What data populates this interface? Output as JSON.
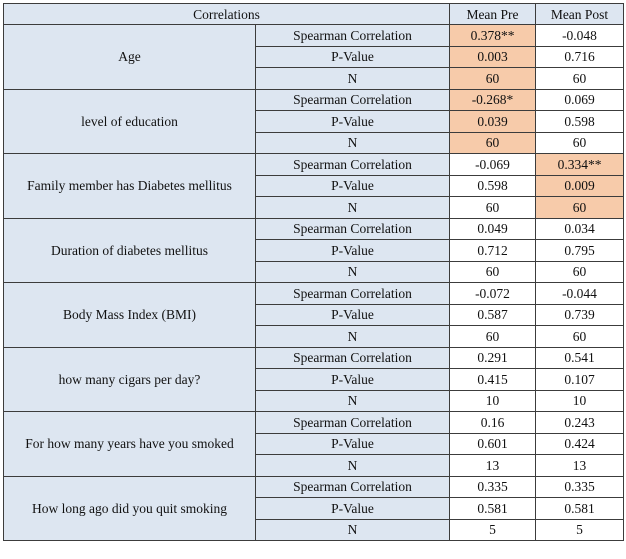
{
  "table": {
    "header": {
      "corner": "Correlations",
      "col_pre": "Mean Pre",
      "col_post": "Mean Post"
    },
    "groups": [
      {
        "variable": "Age",
        "rows": [
          {
            "stat": "Spearman Correlation",
            "pre": "0.378**",
            "post": "-0.048",
            "pre_highlight": true,
            "post_highlight": false
          },
          {
            "stat": "P-Value",
            "pre": "0.003",
            "post": "0.716",
            "pre_highlight": true,
            "post_highlight": false
          },
          {
            "stat": "N",
            "pre": "60",
            "post": "60",
            "pre_highlight": true,
            "post_highlight": false
          }
        ]
      },
      {
        "variable": "level of education",
        "rows": [
          {
            "stat": "Spearman Correlation",
            "pre": "-0.268*",
            "post": "0.069",
            "pre_highlight": true,
            "post_highlight": false
          },
          {
            "stat": "P-Value",
            "pre": "0.039",
            "post": "0.598",
            "pre_highlight": true,
            "post_highlight": false
          },
          {
            "stat": "N",
            "pre": "60",
            "post": "60",
            "pre_highlight": true,
            "post_highlight": false
          }
        ]
      },
      {
        "variable": "Family member has Diabetes mellitus",
        "rows": [
          {
            "stat": "Spearman Correlation",
            "pre": "-0.069",
            "post": "0.334**",
            "pre_highlight": false,
            "post_highlight": true
          },
          {
            "stat": "P-Value",
            "pre": "0.598",
            "post": "0.009",
            "pre_highlight": false,
            "post_highlight": true
          },
          {
            "stat": "N",
            "pre": "60",
            "post": "60",
            "pre_highlight": false,
            "post_highlight": true
          }
        ]
      },
      {
        "variable": "Duration of diabetes mellitus",
        "rows": [
          {
            "stat": "Spearman Correlation",
            "pre": "0.049",
            "post": "0.034",
            "pre_highlight": false,
            "post_highlight": false
          },
          {
            "stat": "P-Value",
            "pre": "0.712",
            "post": "0.795",
            "pre_highlight": false,
            "post_highlight": false
          },
          {
            "stat": "N",
            "pre": "60",
            "post": "60",
            "pre_highlight": false,
            "post_highlight": false
          }
        ]
      },
      {
        "variable": "Body Mass Index (BMI)",
        "rows": [
          {
            "stat": "Spearman Correlation",
            "pre": "-0.072",
            "post": "-0.044",
            "pre_highlight": false,
            "post_highlight": false
          },
          {
            "stat": "P-Value",
            "pre": "0.587",
            "post": "0.739",
            "pre_highlight": false,
            "post_highlight": false
          },
          {
            "stat": "N",
            "pre": "60",
            "post": "60",
            "pre_highlight": false,
            "post_highlight": false
          }
        ]
      },
      {
        "variable": "how many cigars per day?",
        "rows": [
          {
            "stat": "Spearman Correlation",
            "pre": "0.291",
            "post": "0.541",
            "pre_highlight": false,
            "post_highlight": false
          },
          {
            "stat": "P-Value",
            "pre": "0.415",
            "post": "0.107",
            "pre_highlight": false,
            "post_highlight": false
          },
          {
            "stat": "N",
            "pre": "10",
            "post": "10",
            "pre_highlight": false,
            "post_highlight": false
          }
        ]
      },
      {
        "variable": "For how many years have you smoked",
        "rows": [
          {
            "stat": "Spearman Correlation",
            "pre": "0.16",
            "post": "0.243",
            "pre_highlight": false,
            "post_highlight": false
          },
          {
            "stat": "P-Value",
            "pre": "0.601",
            "post": "0.424",
            "pre_highlight": false,
            "post_highlight": false
          },
          {
            "stat": "N",
            "pre": "13",
            "post": "13",
            "pre_highlight": false,
            "post_highlight": false
          }
        ]
      },
      {
        "variable": "How long ago did you quit smoking",
        "rows": [
          {
            "stat": "Spearman Correlation",
            "pre": "0.335",
            "post": "0.335",
            "pre_highlight": false,
            "post_highlight": false
          },
          {
            "stat": "P-Value",
            "pre": "0.581",
            "post": "0.581",
            "pre_highlight": false,
            "post_highlight": false
          },
          {
            "stat": "N",
            "pre": "5",
            "post": "5",
            "pre_highlight": false,
            "post_highlight": false
          }
        ]
      }
    ]
  },
  "colors": {
    "label_background": "#dde6f1",
    "highlight": "#f7cbaa",
    "border": "#3c3c3c"
  }
}
